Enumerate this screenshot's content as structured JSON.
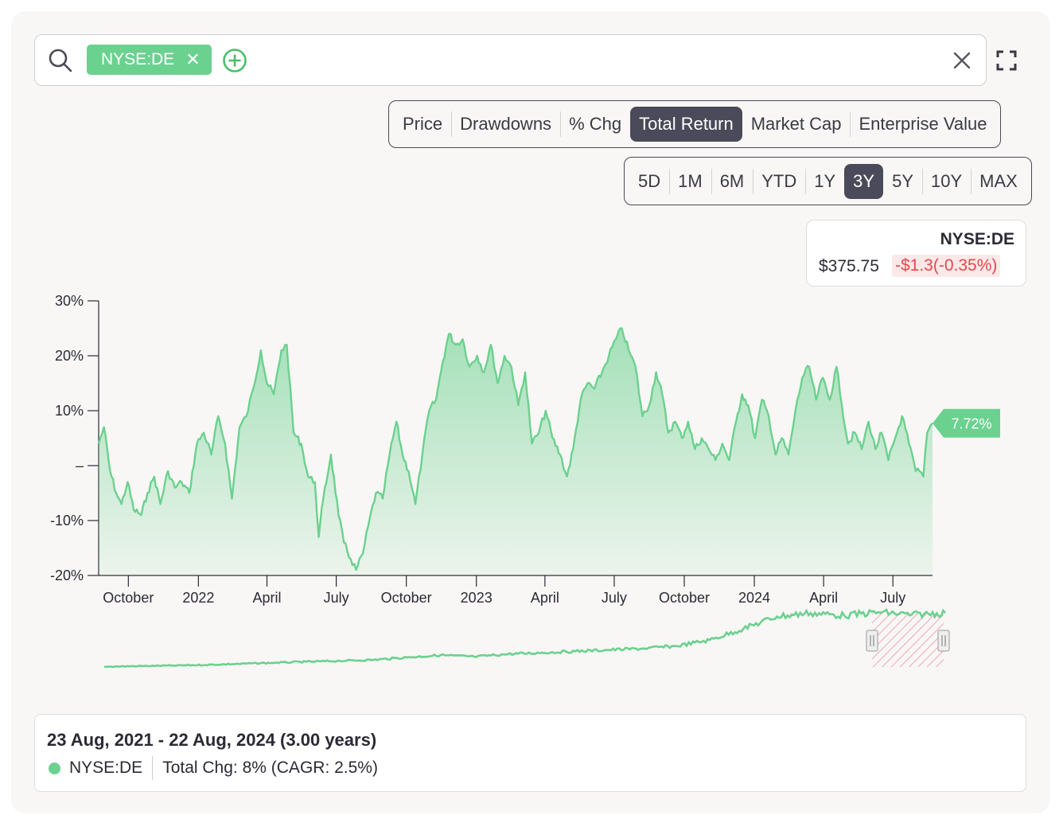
{
  "search": {
    "ticker_chip": "NYSE:DE",
    "chip_close": "✕"
  },
  "metrics": [
    "Price",
    "Drawdowns",
    "% Chg",
    "Total Return",
    "Market Cap",
    "Enterprise Value"
  ],
  "active_metric": "Total Return",
  "ranges": [
    "5D",
    "1M",
    "6M",
    "YTD",
    "1Y",
    "3Y",
    "5Y",
    "10Y",
    "MAX"
  ],
  "active_range": "3Y",
  "price_box": {
    "ticker": "NYSE:DE",
    "price": "$375.75",
    "change": "-$1.3(-0.35%)"
  },
  "summary": {
    "range": "23 Aug, 2021 - 22 Aug, 2024 (3.00 years)",
    "ticker": "NYSE:DE",
    "total_change": "Total Chg: 8% (CAGR: 2.5%)"
  },
  "colors": {
    "series": "#6bd18f",
    "accent_dark": "#4a4a5a",
    "negative": "#e5484d"
  },
  "chart_data": {
    "type": "area",
    "title": "",
    "y_tick_labels": [
      "30%",
      "20%",
      "10%",
      "–",
      "-10%",
      "-20%"
    ],
    "x_tick_labels": [
      "October",
      "2022",
      "April",
      "July",
      "October",
      "2023",
      "April",
      "July",
      "October",
      "2024",
      "April",
      "July"
    ],
    "ylim": [
      -20,
      30
    ],
    "grid": false,
    "series": [
      {
        "name": "NYSE:DE",
        "last_label": "7.72%",
        "points": [
          [
            "2021-08-23",
            4
          ],
          [
            "2021-08-30",
            7
          ],
          [
            "2021-09-07",
            -1
          ],
          [
            "2021-09-15",
            -5
          ],
          [
            "2021-09-22",
            -7
          ],
          [
            "2021-09-30",
            -3
          ],
          [
            "2021-10-08",
            -8
          ],
          [
            "2021-10-18",
            -9
          ],
          [
            "2021-10-26",
            -5
          ],
          [
            "2021-11-04",
            -2
          ],
          [
            "2021-11-12",
            -7
          ],
          [
            "2021-11-22",
            -1
          ],
          [
            "2021-12-01",
            -4
          ],
          [
            "2021-12-10",
            -3
          ],
          [
            "2021-12-20",
            -5
          ],
          [
            "2021-12-30",
            4
          ],
          [
            "2022-01-08",
            6
          ],
          [
            "2022-01-18",
            2
          ],
          [
            "2022-01-27",
            9
          ],
          [
            "2022-02-05",
            4
          ],
          [
            "2022-02-14",
            -6
          ],
          [
            "2022-02-24",
            7
          ],
          [
            "2022-03-05",
            9
          ],
          [
            "2022-03-14",
            14
          ],
          [
            "2022-03-24",
            21
          ],
          [
            "2022-04-01",
            15
          ],
          [
            "2022-04-10",
            13
          ],
          [
            "2022-04-20",
            21
          ],
          [
            "2022-04-27",
            22
          ],
          [
            "2022-05-06",
            6
          ],
          [
            "2022-05-16",
            4
          ],
          [
            "2022-05-25",
            -2
          ],
          [
            "2022-06-03",
            -3
          ],
          [
            "2022-06-08",
            -13
          ],
          [
            "2022-06-14",
            -6
          ],
          [
            "2022-06-24",
            2
          ],
          [
            "2022-07-04",
            -9
          ],
          [
            "2022-07-11",
            -14
          ],
          [
            "2022-07-20",
            -17
          ],
          [
            "2022-07-27",
            -19
          ],
          [
            "2022-08-05",
            -16
          ],
          [
            "2022-08-12",
            -11
          ],
          [
            "2022-08-22",
            -5
          ],
          [
            "2022-08-31",
            -6
          ],
          [
            "2022-09-09",
            2
          ],
          [
            "2022-09-18",
            8
          ],
          [
            "2022-09-26",
            2
          ],
          [
            "2022-10-04",
            -1
          ],
          [
            "2022-10-13",
            -7
          ],
          [
            "2022-10-22",
            2
          ],
          [
            "2022-10-31",
            10
          ],
          [
            "2022-11-09",
            12
          ],
          [
            "2022-11-18",
            19
          ],
          [
            "2022-11-26",
            24
          ],
          [
            "2022-12-05",
            22
          ],
          [
            "2022-12-14",
            23
          ],
          [
            "2022-12-23",
            18
          ],
          [
            "2023-01-02",
            20
          ],
          [
            "2023-01-11",
            17
          ],
          [
            "2023-01-20",
            22
          ],
          [
            "2023-01-29",
            15
          ],
          [
            "2023-02-07",
            20
          ],
          [
            "2023-02-16",
            18
          ],
          [
            "2023-02-25",
            11
          ],
          [
            "2023-03-06",
            17
          ],
          [
            "2023-03-15",
            4
          ],
          [
            "2023-03-24",
            6
          ],
          [
            "2023-04-02",
            10
          ],
          [
            "2023-04-11",
            5
          ],
          [
            "2023-04-21",
            2
          ],
          [
            "2023-04-30",
            -2
          ],
          [
            "2023-05-08",
            3
          ],
          [
            "2023-05-18",
            12
          ],
          [
            "2023-05-27",
            15
          ],
          [
            "2023-06-05",
            14
          ],
          [
            "2023-06-15",
            17
          ],
          [
            "2023-06-24",
            20
          ],
          [
            "2023-07-03",
            23
          ],
          [
            "2023-07-11",
            25
          ],
          [
            "2023-07-20",
            21
          ],
          [
            "2023-07-29",
            18
          ],
          [
            "2023-08-07",
            9
          ],
          [
            "2023-08-16",
            11
          ],
          [
            "2023-08-25",
            17
          ],
          [
            "2023-09-02",
            13
          ],
          [
            "2023-09-10",
            6
          ],
          [
            "2023-09-19",
            8
          ],
          [
            "2023-09-28",
            5
          ],
          [
            "2023-10-06",
            8
          ],
          [
            "2023-10-15",
            3
          ],
          [
            "2023-10-24",
            5
          ],
          [
            "2023-11-02",
            3
          ],
          [
            "2023-11-11",
            1
          ],
          [
            "2023-11-20",
            4
          ],
          [
            "2023-11-29",
            1
          ],
          [
            "2023-12-08",
            8
          ],
          [
            "2023-12-16",
            13
          ],
          [
            "2023-12-24",
            11
          ],
          [
            "2024-01-02",
            5
          ],
          [
            "2024-01-11",
            12
          ],
          [
            "2024-01-20",
            9
          ],
          [
            "2024-01-29",
            2
          ],
          [
            "2024-02-06",
            5
          ],
          [
            "2024-02-15",
            2
          ],
          [
            "2024-02-24",
            10
          ],
          [
            "2024-03-04",
            16
          ],
          [
            "2024-03-13",
            18
          ],
          [
            "2024-03-22",
            12
          ],
          [
            "2024-03-31",
            16
          ],
          [
            "2024-04-09",
            12
          ],
          [
            "2024-04-18",
            18
          ],
          [
            "2024-04-25",
            11
          ],
          [
            "2024-05-03",
            4
          ],
          [
            "2024-05-12",
            6
          ],
          [
            "2024-05-21",
            3
          ],
          [
            "2024-05-30",
            8
          ],
          [
            "2024-06-08",
            3
          ],
          [
            "2024-06-16",
            6
          ],
          [
            "2024-06-25",
            1
          ],
          [
            "2024-07-04",
            5
          ],
          [
            "2024-07-13",
            9
          ],
          [
            "2024-07-22",
            4
          ],
          [
            "2024-07-31",
            -1
          ],
          [
            "2024-08-05",
            -1
          ],
          [
            "2024-08-10",
            -2
          ],
          [
            "2024-08-15",
            6
          ],
          [
            "2024-08-22",
            7.72
          ]
        ]
      }
    ],
    "navigator": {
      "values": [
        0.2,
        0.5,
        0.8,
        1.2,
        1.8,
        2.4,
        3.0,
        3.5,
        4.1,
        5.5,
        6.8,
        5.9,
        7.4,
        8.2,
        9.0,
        9.8,
        10.6,
        12.0,
        15.5,
        22.0,
        29.0,
        31.0,
        29.5,
        31.5,
        30.0,
        31.0
      ]
    }
  }
}
